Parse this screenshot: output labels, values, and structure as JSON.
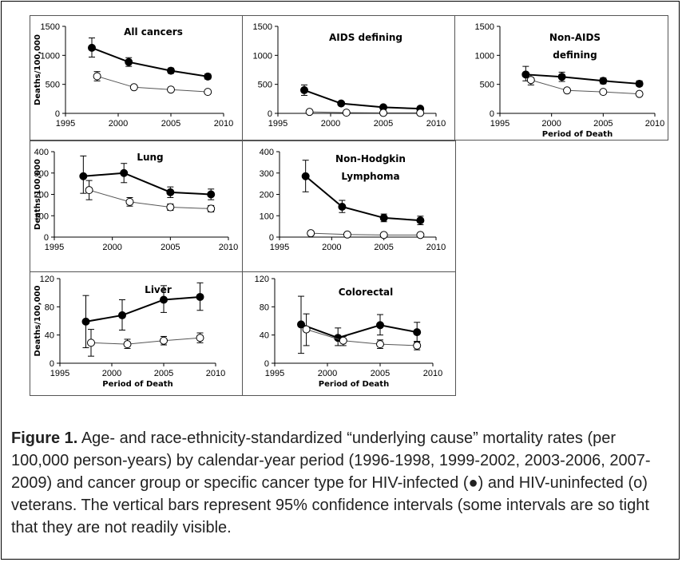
{
  "legend_symbols": {
    "infected": "●",
    "uninfected": "o"
  },
  "caption": {
    "label": "Figure 1.",
    "text": " Age- and race-ethnicity-standardized “underlying cause” mortality rates (per 100,000 person-years) by calendar-year period (1996-1998, 1999-2002, 2003-2006, 2007-2009) and cancer group or specific cancer type for HIV-infected (●) and HIV-uninfected (o) veterans. The vertical bars represent 95% confidence intervals (some intervals are so tight that they are not readily visible."
  },
  "chart_data": [
    {
      "type": "line",
      "title": "All cancers",
      "ylabel": "Deaths/100,000",
      "xlabel": "",
      "xlim": [
        1995,
        2010
      ],
      "ylim": [
        0,
        1500
      ],
      "xticks": [
        1995,
        2000,
        2005,
        2010
      ],
      "yticks": [
        0,
        500,
        1000,
        1500
      ],
      "series": [
        {
          "marker": "filled",
          "x": [
            1997.5,
            2001,
            2005,
            2008.5
          ],
          "y": [
            1130,
            885,
            735,
            635
          ],
          "ci_low": [
            970,
            810,
            690,
            590
          ],
          "ci_high": [
            1300,
            960,
            780,
            680
          ]
        },
        {
          "marker": "open",
          "x": [
            1998,
            2001.5,
            2005,
            2008.5
          ],
          "y": [
            640,
            450,
            410,
            370
          ],
          "ci_low": [
            560,
            430,
            380,
            340
          ],
          "ci_high": [
            720,
            470,
            440,
            400
          ]
        }
      ]
    },
    {
      "type": "line",
      "title": "AIDS defining",
      "ylabel": "",
      "xlabel": "",
      "xlim": [
        1995,
        2010
      ],
      "ylim": [
        0,
        1500
      ],
      "xticks": [
        1995,
        2000,
        2005,
        2010
      ],
      "yticks": [
        0,
        500,
        1000,
        1500
      ],
      "series": [
        {
          "marker": "filled",
          "x": [
            1997.5,
            2001,
            2005,
            2008.5
          ],
          "y": [
            400,
            170,
            105,
            80
          ],
          "ci_low": [
            310,
            140,
            90,
            65
          ],
          "ci_high": [
            490,
            200,
            120,
            95
          ]
        },
        {
          "marker": "open",
          "x": [
            1998,
            2001.5,
            2005,
            2008.5
          ],
          "y": [
            25,
            12,
            8,
            8
          ],
          "ci_low": [
            15,
            8,
            5,
            5
          ],
          "ci_high": [
            35,
            16,
            11,
            11
          ]
        }
      ]
    },
    {
      "type": "line",
      "title": "Non-AIDS defining",
      "ylabel": "",
      "xlabel": "Period of Death",
      "xlim": [
        1995,
        2010
      ],
      "ylim": [
        0,
        1500
      ],
      "xticks": [
        1995,
        2000,
        2005,
        2010
      ],
      "yticks": [
        0,
        500,
        1000,
        1500
      ],
      "series": [
        {
          "marker": "filled",
          "x": [
            1997.5,
            2001,
            2005,
            2008.5
          ],
          "y": [
            670,
            630,
            560,
            510
          ],
          "ci_low": [
            560,
            550,
            510,
            470
          ],
          "ci_high": [
            810,
            710,
            610,
            560
          ]
        },
        {
          "marker": "open",
          "x": [
            1998,
            2001.5,
            2005,
            2008.5
          ],
          "y": [
            575,
            395,
            370,
            335
          ],
          "ci_low": [
            490,
            370,
            340,
            310
          ],
          "ci_high": [
            660,
            420,
            400,
            360
          ]
        }
      ]
    },
    {
      "type": "line",
      "title": "Lung",
      "ylabel": "Deaths/100,000",
      "xlabel": "",
      "xlim": [
        1995,
        2010
      ],
      "ylim": [
        0,
        400
      ],
      "xticks": [
        1995,
        2000,
        2005,
        2010
      ],
      "yticks": [
        0,
        100,
        200,
        300,
        400
      ],
      "series": [
        {
          "marker": "filled",
          "x": [
            1997.5,
            2001,
            2005,
            2008.5
          ],
          "y": [
            285,
            300,
            210,
            200
          ],
          "ci_low": [
            205,
            255,
            185,
            175
          ],
          "ci_high": [
            380,
            345,
            235,
            225
          ]
        },
        {
          "marker": "open",
          "x": [
            1998,
            2001.5,
            2005,
            2008.5
          ],
          "y": [
            220,
            165,
            140,
            133
          ],
          "ci_low": [
            175,
            145,
            125,
            118
          ],
          "ci_high": [
            265,
            185,
            155,
            148
          ]
        }
      ]
    },
    {
      "type": "line",
      "title": "Non-Hodgkin Lymphoma",
      "ylabel": "",
      "xlabel": "",
      "xlim": [
        1995,
        2010
      ],
      "ylim": [
        0,
        400
      ],
      "xticks": [
        1995,
        2000,
        2005,
        2010
      ],
      "yticks": [
        0,
        100,
        200,
        300,
        400
      ],
      "series": [
        {
          "marker": "filled",
          "x": [
            1997.5,
            2001,
            2005,
            2008.5
          ],
          "y": [
            285,
            142,
            90,
            78
          ],
          "ci_low": [
            212,
            115,
            72,
            58
          ],
          "ci_high": [
            360,
            172,
            108,
            98
          ]
        },
        {
          "marker": "open",
          "x": [
            1998,
            2001.5,
            2005,
            2008.5
          ],
          "y": [
            18,
            12,
            10,
            10
          ],
          "ci_low": [
            8,
            7,
            6,
            6
          ],
          "ci_high": [
            28,
            17,
            14,
            14
          ]
        }
      ]
    },
    {
      "type": "line",
      "title": "Liver",
      "ylabel": "Deaths/100,000",
      "xlabel": "Period of Death",
      "xlim": [
        1995,
        2010
      ],
      "ylim": [
        0,
        120
      ],
      "xticks": [
        1995,
        2000,
        2005,
        2010
      ],
      "yticks": [
        0,
        40,
        80,
        120
      ],
      "series": [
        {
          "marker": "filled",
          "x": [
            1997.5,
            2001,
            2005,
            2008.5
          ],
          "y": [
            59,
            68,
            90,
            94
          ],
          "ci_low": [
            22,
            47,
            72,
            75
          ],
          "ci_high": [
            96,
            90,
            110,
            114
          ]
        },
        {
          "marker": "open",
          "x": [
            1998,
            2001.5,
            2005,
            2008.5
          ],
          "y": [
            29,
            27,
            32,
            36
          ],
          "ci_low": [
            10,
            21,
            26,
            29
          ],
          "ci_high": [
            48,
            34,
            38,
            43
          ]
        }
      ]
    },
    {
      "type": "line",
      "title": "Colorectal",
      "ylabel": "",
      "xlabel": "Period of Death",
      "xlim": [
        1995,
        2010
      ],
      "ylim": [
        0,
        120
      ],
      "xticks": [
        1995,
        2000,
        2005,
        2010
      ],
      "yticks": [
        0,
        40,
        80,
        120
      ],
      "series": [
        {
          "marker": "filled",
          "x": [
            1997.5,
            2001,
            2005,
            2008.5
          ],
          "y": [
            55,
            36,
            54,
            44
          ],
          "ci_low": [
            14,
            25,
            40,
            30
          ],
          "ci_high": [
            95,
            50,
            69,
            58
          ]
        },
        {
          "marker": "open",
          "x": [
            1998,
            2001.5,
            2005,
            2008.5
          ],
          "y": [
            48,
            32,
            27,
            25
          ],
          "ci_low": [
            25,
            25,
            21,
            19
          ],
          "ci_high": [
            70,
            38,
            33,
            31
          ]
        }
      ]
    }
  ]
}
